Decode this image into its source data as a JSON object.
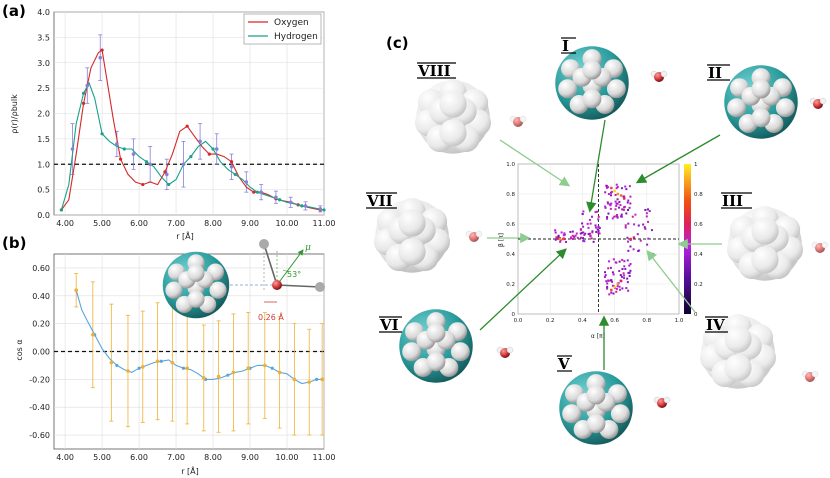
{
  "panel_labels": {
    "a": "(a)",
    "b": "(b)",
    "c": "(c)"
  },
  "chart_data": [
    {
      "id": "a",
      "type": "line",
      "xlabel": "r [Å]",
      "ylabel": "ρ(r)/ρbulk",
      "xlim": [
        3.7,
        11.0
      ],
      "ylim": [
        0.0,
        4.0
      ],
      "xticks": [
        "4.00",
        "5.00",
        "6.00",
        "7.00",
        "8.00",
        "9.00",
        "10.00",
        "11.00"
      ],
      "xtick_values": [
        4,
        5,
        6,
        7,
        8,
        9,
        10,
        11
      ],
      "yticks": [
        "0.0",
        "0.5",
        "1.0",
        "1.5",
        "2.0",
        "2.5",
        "3.0",
        "3.5",
        "4.0"
      ],
      "ytick_values": [
        0,
        0.5,
        1,
        1.5,
        2,
        2.5,
        3,
        3.5,
        4
      ],
      "grid": true,
      "legend_position": "top-right",
      "hline": 1.0,
      "series": [
        {
          "name": "Oxygen",
          "color": "#d62728",
          "x": [
            3.9,
            4.1,
            4.3,
            4.5,
            4.7,
            4.9,
            5.0,
            5.1,
            5.3,
            5.5,
            5.7,
            5.9,
            6.1,
            6.3,
            6.5,
            6.7,
            6.9,
            7.1,
            7.3,
            7.5,
            7.7,
            7.9,
            8.1,
            8.3,
            8.5,
            8.7,
            8.9,
            9.1,
            9.3,
            9.5,
            9.7,
            9.9,
            10.1,
            10.3,
            10.5,
            10.7,
            10.9
          ],
          "y": [
            0.1,
            0.3,
            1.2,
            2.2,
            2.9,
            3.2,
            3.25,
            2.8,
            1.9,
            1.1,
            0.8,
            0.65,
            0.6,
            0.65,
            0.6,
            0.85,
            1.2,
            1.65,
            1.75,
            1.55,
            1.35,
            1.2,
            1.2,
            1.15,
            1.05,
            0.75,
            0.55,
            0.45,
            0.45,
            0.4,
            0.32,
            0.28,
            0.25,
            0.2,
            0.16,
            0.13,
            0.1
          ]
        },
        {
          "name": "Hydrogen",
          "color": "#1aa08b",
          "x": [
            3.9,
            4.1,
            4.3,
            4.5,
            4.65,
            4.8,
            5.0,
            5.2,
            5.4,
            5.6,
            5.8,
            6.0,
            6.2,
            6.4,
            6.6,
            6.8,
            7.0,
            7.2,
            7.4,
            7.6,
            7.8,
            8.0,
            8.2,
            8.4,
            8.6,
            8.8,
            9.0,
            9.2,
            9.4,
            9.6,
            9.8,
            10.0,
            10.2,
            10.4,
            10.6,
            10.8,
            11.0
          ],
          "y": [
            0.1,
            0.6,
            1.8,
            2.4,
            2.6,
            2.3,
            1.6,
            1.45,
            1.35,
            1.3,
            1.3,
            1.15,
            1.05,
            0.95,
            0.75,
            0.6,
            0.7,
            1.0,
            1.15,
            1.35,
            1.45,
            1.3,
            1.05,
            0.9,
            0.8,
            0.7,
            0.55,
            0.45,
            0.4,
            0.35,
            0.3,
            0.25,
            0.22,
            0.18,
            0.16,
            0.13,
            0.1
          ]
        }
      ],
      "error_bars": {
        "color": "#8a7fd8",
        "x": [
          4.2,
          4.6,
          4.95,
          5.4,
          5.85,
          6.3,
          6.75,
          7.2,
          7.65,
          8.1,
          8.5,
          8.9,
          9.3,
          9.7,
          10.1,
          10.5,
          10.9
        ],
        "y": [
          1.3,
          2.55,
          3.1,
          1.4,
          1.2,
          1.0,
          0.8,
          1.0,
          1.45,
          1.3,
          0.95,
          0.65,
          0.45,
          0.35,
          0.25,
          0.18,
          0.12
        ],
        "err": [
          0.5,
          0.35,
          0.45,
          0.25,
          0.3,
          0.35,
          0.3,
          0.45,
          0.35,
          0.3,
          0.25,
          0.2,
          0.15,
          0.12,
          0.1,
          0.08,
          0.06
        ]
      }
    },
    {
      "id": "b",
      "type": "line",
      "xlabel": "r [Å]",
      "ylabel": "cos α",
      "xlim": [
        3.7,
        11.0
      ],
      "ylim": [
        -0.7,
        0.7
      ],
      "xticks": [
        "4.00",
        "5.00",
        "6.00",
        "7.00",
        "8.00",
        "9.00",
        "10.00",
        "11.00"
      ],
      "xtick_values": [
        4,
        5,
        6,
        7,
        8,
        9,
        10,
        11
      ],
      "yticks": [
        "0.60",
        "0.40",
        "0.20",
        "0.00",
        "-0.20",
        "-0.40",
        "-0.60"
      ],
      "ytick_values": [
        0.6,
        0.4,
        0.2,
        0,
        -0.2,
        -0.4,
        -0.6
      ],
      "grid": true,
      "hline": 0.0,
      "series": [
        {
          "color": "#5aa5e0",
          "x": [
            4.3,
            4.45,
            4.6,
            4.8,
            5.0,
            5.2,
            5.4,
            5.6,
            5.8,
            6.0,
            6.2,
            6.4,
            6.6,
            6.8,
            7.0,
            7.2,
            7.4,
            7.6,
            7.8,
            8.0,
            8.2,
            8.4,
            8.6,
            8.8,
            9.0,
            9.2,
            9.4,
            9.6,
            9.8,
            10.0,
            10.2,
            10.4,
            10.6,
            10.8,
            11.0
          ],
          "y": [
            0.44,
            0.3,
            0.22,
            0.12,
            0.02,
            -0.05,
            -0.1,
            -0.13,
            -0.15,
            -0.12,
            -0.1,
            -0.08,
            -0.07,
            -0.06,
            -0.1,
            -0.12,
            -0.13,
            -0.16,
            -0.2,
            -0.2,
            -0.19,
            -0.17,
            -0.15,
            -0.14,
            -0.12,
            -0.1,
            -0.1,
            -0.12,
            -0.15,
            -0.16,
            -0.2,
            -0.23,
            -0.22,
            -0.2,
            -0.2
          ]
        }
      ],
      "error_bars": {
        "color": "#f0b030",
        "x": [
          4.3,
          4.75,
          5.25,
          5.7,
          6.1,
          6.5,
          6.9,
          7.3,
          7.75,
          8.15,
          8.55,
          8.95,
          9.4,
          9.8,
          10.2,
          10.6,
          10.95
        ],
        "y": [
          0.44,
          0.12,
          -0.08,
          -0.14,
          -0.11,
          -0.07,
          -0.08,
          -0.12,
          -0.19,
          -0.18,
          -0.15,
          -0.12,
          -0.1,
          -0.15,
          -0.2,
          -0.22,
          -0.2
        ],
        "err": [
          0.12,
          0.38,
          0.42,
          0.4,
          0.4,
          0.42,
          0.42,
          0.4,
          0.38,
          0.4,
          0.42,
          0.4,
          0.38,
          0.4,
          0.4,
          0.38,
          0.4
        ]
      },
      "inset": {
        "distance_label": "0.26 Å",
        "angle_label": "53°",
        "vector_label": "μ"
      }
    },
    {
      "id": "c",
      "type": "scatter",
      "xlabel": "α [π]",
      "ylabel": "β [π]",
      "xlim": [
        0.0,
        1.0
      ],
      "ylim": [
        0.0,
        1.0
      ],
      "xticks": [
        "0.0",
        "0.2",
        "0.4",
        "0.6",
        "0.8",
        "1.0"
      ],
      "xtick_values": [
        0,
        0.2,
        0.4,
        0.6,
        0.8,
        1.0
      ],
      "yticks": [
        "0",
        "0.2",
        "0.4",
        "0.6",
        "0.8",
        "1.0"
      ],
      "ytick_values": [
        0,
        0.2,
        0.4,
        0.6,
        0.8,
        1.0
      ],
      "grid": true,
      "colorbar": {
        "min": 0,
        "max": 1,
        "ticks": [
          "0",
          "0.2",
          "0.4",
          "0.6",
          "0.8",
          "1"
        ],
        "tick_values": [
          0,
          0.2,
          0.4,
          0.6,
          0.8,
          1
        ]
      },
      "ref_lines": {
        "vertical": 0.5,
        "horizontal": 0.5
      },
      "hot_points": [
        [
          0.6,
          0.82,
          0.95
        ],
        [
          0.62,
          0.8,
          0.85
        ],
        [
          0.64,
          0.79,
          0.8
        ],
        [
          0.58,
          0.84,
          0.7
        ],
        [
          0.66,
          0.77,
          0.6
        ],
        [
          0.26,
          0.5,
          0.85
        ],
        [
          0.28,
          0.5,
          0.75
        ],
        [
          0.24,
          0.51,
          0.6
        ],
        [
          0.6,
          0.18,
          0.95
        ],
        [
          0.62,
          0.2,
          0.85
        ],
        [
          0.58,
          0.16,
          0.75
        ],
        [
          0.64,
          0.22,
          0.6
        ],
        [
          0.7,
          0.5,
          0.65
        ],
        [
          0.72,
          0.51,
          0.55
        ],
        [
          0.45,
          0.52,
          0.5
        ],
        [
          0.5,
          0.58,
          0.45
        ]
      ],
      "roman_labels": [
        "I",
        "II",
        "III",
        "IV",
        "V",
        "VI",
        "VII",
        "VIII"
      ]
    }
  ],
  "colors": {
    "teal": "#2a9b9b",
    "white_atom": "#e6e6e6",
    "oxygen": "#d23c3c",
    "arrow_dark": "#2e8b2e",
    "arrow_light": "#8fcc8f"
  }
}
